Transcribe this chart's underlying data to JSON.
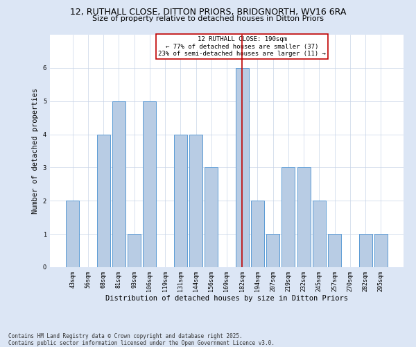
{
  "title": "12, RUTHALL CLOSE, DITTON PRIORS, BRIDGNORTH, WV16 6RA",
  "subtitle": "Size of property relative to detached houses in Ditton Priors",
  "xlabel": "Distribution of detached houses by size in Ditton Priors",
  "ylabel": "Number of detached properties",
  "categories": [
    "43sqm",
    "56sqm",
    "68sqm",
    "81sqm",
    "93sqm",
    "106sqm",
    "119sqm",
    "131sqm",
    "144sqm",
    "156sqm",
    "169sqm",
    "182sqm",
    "194sqm",
    "207sqm",
    "219sqm",
    "232sqm",
    "245sqm",
    "257sqm",
    "270sqm",
    "282sqm",
    "295sqm"
  ],
  "values": [
    2,
    0,
    4,
    5,
    1,
    5,
    0,
    4,
    4,
    3,
    0,
    6,
    2,
    1,
    3,
    3,
    2,
    1,
    0,
    1,
    1
  ],
  "bar_color": "#b8cce4",
  "bar_edge_color": "#5b9bd5",
  "highlight_index": 11,
  "highlight_line_color": "#c00000",
  "annotation_box_color": "#c00000",
  "annotation_text": "12 RUTHALL CLOSE: 190sqm\n← 77% of detached houses are smaller (37)\n23% of semi-detached houses are larger (11) →",
  "annotation_fontsize": 6.5,
  "ylim": [
    0,
    7
  ],
  "yticks": [
    0,
    1,
    2,
    3,
    4,
    5,
    6,
    7
  ],
  "title_fontsize": 9,
  "subtitle_fontsize": 8,
  "xlabel_fontsize": 7.5,
  "ylabel_fontsize": 7.5,
  "tick_fontsize": 6,
  "footer": "Contains HM Land Registry data © Crown copyright and database right 2025.\nContains public sector information licensed under the Open Government Licence v3.0.",
  "footer_fontsize": 5.5,
  "background_color": "#dce6f5",
  "plot_bg_color": "#ffffff",
  "grid_color": "#c8d4e8"
}
